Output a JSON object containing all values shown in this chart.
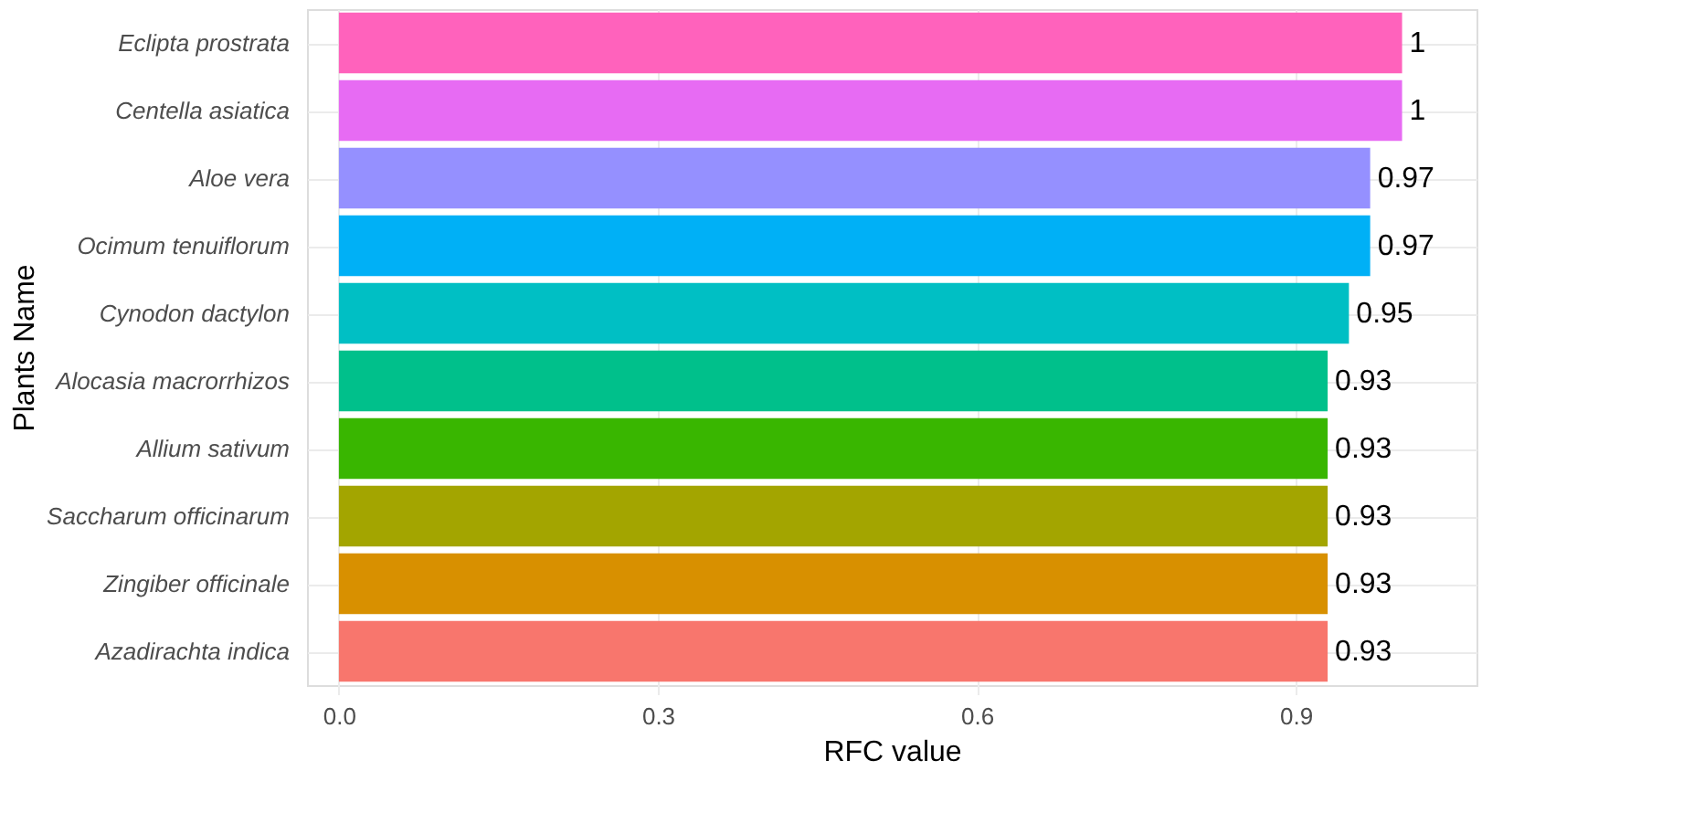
{
  "chart_data": {
    "type": "bar",
    "orientation": "horizontal",
    "xlabel": "RFC value",
    "ylabel": "Plants Name",
    "categories": [
      "Eclipta prostrata",
      "Centella asiatica",
      "Aloe vera",
      "Ocimum tenuiflorum",
      "Cynodon dactylon",
      "Alocasia macrorrhizos",
      "Allium sativum",
      "Saccharum officinarum",
      "Zingiber officinale",
      "Azadirachta indica"
    ],
    "values": [
      1,
      1,
      0.97,
      0.97,
      0.95,
      0.93,
      0.93,
      0.93,
      0.93,
      0.93
    ],
    "colors": [
      "#ff62bc",
      "#e76bf3",
      "#9590ff",
      "#00b0f6",
      "#00bfc4",
      "#00c08b",
      "#39b600",
      "#a3a500",
      "#d89000",
      "#f8766d"
    ],
    "xlim": [
      -0.03,
      1.07
    ],
    "xticks": [
      {
        "value": 0,
        "label": "0.0"
      },
      0.3,
      0.6,
      0.9
    ],
    "grid": true,
    "data_labels": true
  }
}
